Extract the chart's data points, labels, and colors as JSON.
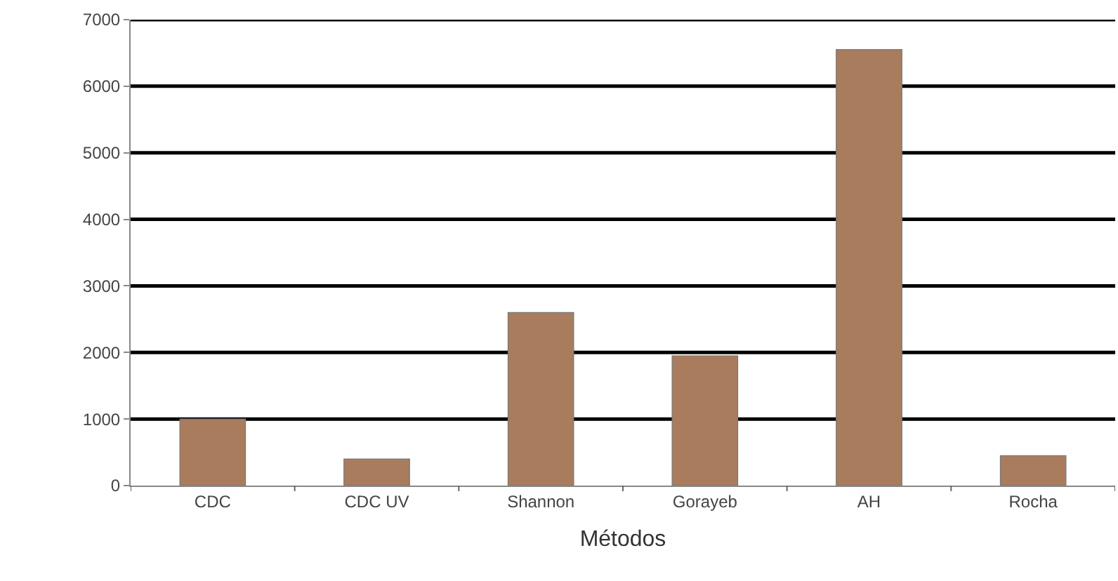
{
  "chart_data": {
    "type": "bar",
    "xlabel": "Métodos",
    "categories": [
      "CDC",
      "CDC UV",
      "Shannon",
      "Gorayeb",
      "AH",
      "Rocha"
    ],
    "values": [
      1000,
      400,
      2600,
      1950,
      6550,
      450
    ],
    "color": "#a97c5e",
    "ylim": [
      0,
      7000
    ],
    "yticks": [
      0,
      1000,
      2000,
      3000,
      4000,
      5000,
      6000,
      7000
    ],
    "grid": "y"
  }
}
